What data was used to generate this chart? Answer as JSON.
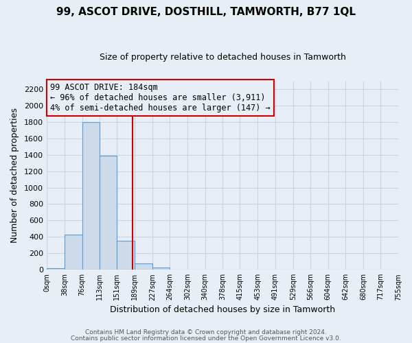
{
  "title": "99, ASCOT DRIVE, DOSTHILL, TAMWORTH, B77 1QL",
  "subtitle": "Size of property relative to detached houses in Tamworth",
  "xlabel": "Distribution of detached houses by size in Tamworth",
  "ylabel": "Number of detached properties",
  "bar_edges": [
    0,
    38,
    76,
    113,
    151,
    189,
    227,
    264,
    302,
    340,
    378,
    415,
    453,
    491,
    529,
    566,
    604,
    642,
    680,
    717,
    755
  ],
  "bar_heights": [
    20,
    425,
    1800,
    1390,
    355,
    80,
    30,
    0,
    0,
    0,
    0,
    0,
    0,
    0,
    0,
    0,
    0,
    0,
    0,
    0
  ],
  "bar_color": "#ccdaea",
  "bar_edge_color": "#5b9bd5",
  "property_line_x": 184,
  "property_line_color": "#cc0000",
  "annotation_line1": "99 ASCOT DRIVE: 184sqm",
  "annotation_line2": "← 96% of detached houses are smaller (3,911)",
  "annotation_line3": "4% of semi-detached houses are larger (147) →",
  "annotation_box_color": "#cc0000",
  "yticks": [
    0,
    200,
    400,
    600,
    800,
    1000,
    1200,
    1400,
    1600,
    1800,
    2000,
    2200
  ],
  "xtick_labels": [
    "0sqm",
    "38sqm",
    "76sqm",
    "113sqm",
    "151sqm",
    "189sqm",
    "227sqm",
    "264sqm",
    "302sqm",
    "340sqm",
    "378sqm",
    "415sqm",
    "453sqm",
    "491sqm",
    "529sqm",
    "566sqm",
    "604sqm",
    "642sqm",
    "680sqm",
    "717sqm",
    "755sqm"
  ],
  "ylim": [
    0,
    2300
  ],
  "xlim": [
    0,
    755
  ],
  "grid_color": "#c8d4e4",
  "bg_color": "#e8eef6",
  "footer_line1": "Contains HM Land Registry data © Crown copyright and database right 2024.",
  "footer_line2": "Contains public sector information licensed under the Open Government Licence v3.0."
}
